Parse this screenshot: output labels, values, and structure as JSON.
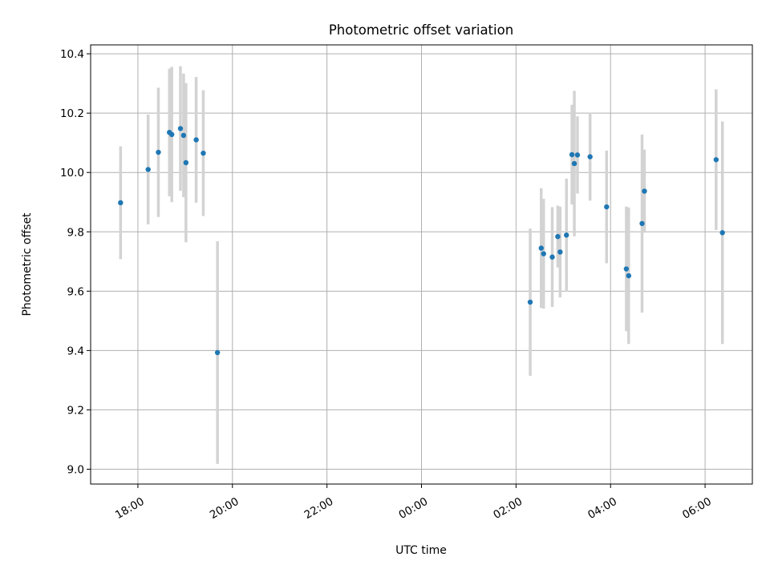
{
  "chart_data": {
    "type": "scatter",
    "title": "Photometric offset variation",
    "xlabel": "UTC time",
    "ylabel": "Photometric offset",
    "x_axis": "time",
    "xlim": [
      "2000-01-01T17:00:00",
      "2000-01-02T07:00:00"
    ],
    "ylim": [
      8.95,
      10.43
    ],
    "xticks": [
      {
        "t": "2000-01-01T18:00:00",
        "label": "18:00"
      },
      {
        "t": "2000-01-01T20:00:00",
        "label": "20:00"
      },
      {
        "t": "2000-01-01T22:00:00",
        "label": "22:00"
      },
      {
        "t": "2000-01-02T00:00:00",
        "label": "00:00"
      },
      {
        "t": "2000-01-02T02:00:00",
        "label": "02:00"
      },
      {
        "t": "2000-01-02T04:00:00",
        "label": "04:00"
      },
      {
        "t": "2000-01-02T06:00:00",
        "label": "06:00"
      }
    ],
    "yticks": [
      9.0,
      9.2,
      9.4,
      9.6,
      9.8,
      10.0,
      10.2,
      10.4
    ],
    "grid": true,
    "marker_color": "#1f77b4",
    "errorbar_color": "#d3d3d3",
    "points": [
      {
        "t": "2000-01-01T17:38:00",
        "y": 9.898,
        "err": 0.19
      },
      {
        "t": "2000-01-01T18:13:00",
        "y": 10.01,
        "err": 0.185
      },
      {
        "t": "2000-01-01T18:26:00",
        "y": 10.068,
        "err": 0.218
      },
      {
        "t": "2000-01-01T18:40:00",
        "y": 10.135,
        "err": 0.215
      },
      {
        "t": "2000-01-01T18:43:00",
        "y": 10.128,
        "err": 0.228
      },
      {
        "t": "2000-01-01T18:54:00",
        "y": 10.148,
        "err": 0.21
      },
      {
        "t": "2000-01-01T18:58:00",
        "y": 10.125,
        "err": 0.208
      },
      {
        "t": "2000-01-01T19:01:00",
        "y": 10.033,
        "err": 0.268
      },
      {
        "t": "2000-01-01T19:14:00",
        "y": 10.11,
        "err": 0.212
      },
      {
        "t": "2000-01-01T19:23:00",
        "y": 10.065,
        "err": 0.212
      },
      {
        "t": "2000-01-01T19:41:00",
        "y": 9.393,
        "err": 0.375
      },
      {
        "t": "2000-01-02T02:18:00",
        "y": 9.563,
        "err": 0.248
      },
      {
        "t": "2000-01-02T02:32:00",
        "y": 9.745,
        "err": 0.202
      },
      {
        "t": "2000-01-02T02:35:00",
        "y": 9.726,
        "err": 0.185
      },
      {
        "t": "2000-01-02T02:46:00",
        "y": 9.715,
        "err": 0.168
      },
      {
        "t": "2000-01-02T02:53:00",
        "y": 9.784,
        "err": 0.104
      },
      {
        "t": "2000-01-02T02:56:00",
        "y": 9.732,
        "err": 0.153
      },
      {
        "t": "2000-01-02T03:04:00",
        "y": 9.789,
        "err": 0.19
      },
      {
        "t": "2000-01-02T03:11:00",
        "y": 10.06,
        "err": 0.168
      },
      {
        "t": "2000-01-02T03:14:00",
        "y": 10.03,
        "err": 0.245
      },
      {
        "t": "2000-01-02T03:18:00",
        "y": 10.059,
        "err": 0.13
      },
      {
        "t": "2000-01-02T03:34:00",
        "y": 10.053,
        "err": 0.148
      },
      {
        "t": "2000-01-02T03:55:00",
        "y": 9.884,
        "err": 0.19
      },
      {
        "t": "2000-01-02T04:20:00",
        "y": 9.675,
        "err": 0.21
      },
      {
        "t": "2000-01-02T04:23:00",
        "y": 9.652,
        "err": 0.23
      },
      {
        "t": "2000-01-02T04:40:00",
        "y": 9.828,
        "err": 0.3
      },
      {
        "t": "2000-01-02T04:43:00",
        "y": 9.937,
        "err": 0.14
      },
      {
        "t": "2000-01-02T06:14:00",
        "y": 10.043,
        "err": 0.237
      },
      {
        "t": "2000-01-02T06:22:00",
        "y": 9.797,
        "err": 0.375
      }
    ]
  }
}
